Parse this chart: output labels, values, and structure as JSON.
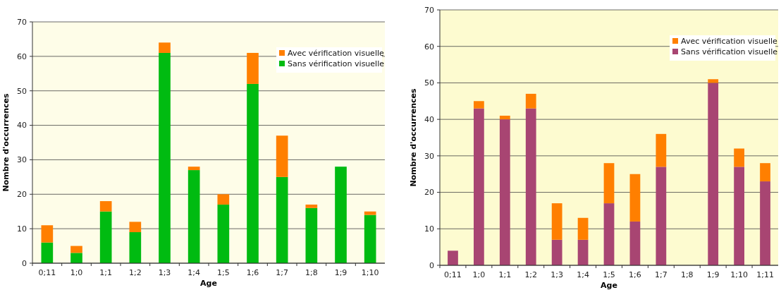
{
  "chart_data": [
    {
      "type": "bar",
      "stacked": true,
      "xlabel": "Age",
      "ylabel": "Nombre d'occurrences",
      "categories": [
        "0;11",
        "1;0",
        "1;1",
        "1;2",
        "1;3",
        "1;4",
        "1;5",
        "1;6",
        "1;7",
        "1;8",
        "1;9",
        "1;10"
      ],
      "series": [
        {
          "name": "Sans vérification visuelle",
          "color": "#00bb11",
          "values": [
            6,
            3,
            15,
            9,
            61,
            27,
            17,
            52,
            25,
            16,
            28,
            14
          ]
        },
        {
          "name": "Avec vérification visuelle",
          "color": "#ff7f00",
          "values": [
            5,
            2,
            3,
            3,
            3,
            1,
            3,
            9,
            12,
            1,
            0,
            1
          ]
        }
      ],
      "ylim": [
        0,
        70
      ],
      "yticks": [
        0,
        10,
        20,
        30,
        40,
        50,
        60,
        70
      ],
      "grid": "y",
      "legend": "top right"
    },
    {
      "type": "bar",
      "stacked": true,
      "xlabel": "Age",
      "ylabel": "Nombre d'occurrences",
      "categories": [
        "0;11",
        "1;0",
        "1;1",
        "1;2",
        "1;3",
        "1;4",
        "1;5",
        "1;6",
        "1;7",
        "1;8",
        "1;9",
        "1;10",
        "1;11"
      ],
      "series": [
        {
          "name": "Sans vérification visuelle",
          "color": "#a84572",
          "values": [
            4,
            43,
            40,
            43,
            7,
            7,
            17,
            12,
            27,
            0,
            50,
            27,
            23
          ]
        },
        {
          "name": "Avec vérification visuelle",
          "color": "#ff7f00",
          "values": [
            0,
            2,
            1,
            4,
            10,
            6,
            11,
            13,
            9,
            0,
            1,
            5,
            5
          ]
        }
      ],
      "ylim": [
        0,
        70
      ],
      "yticks": [
        0,
        10,
        20,
        30,
        40,
        50,
        60,
        70
      ],
      "grid": "y",
      "legend": "top right"
    }
  ]
}
